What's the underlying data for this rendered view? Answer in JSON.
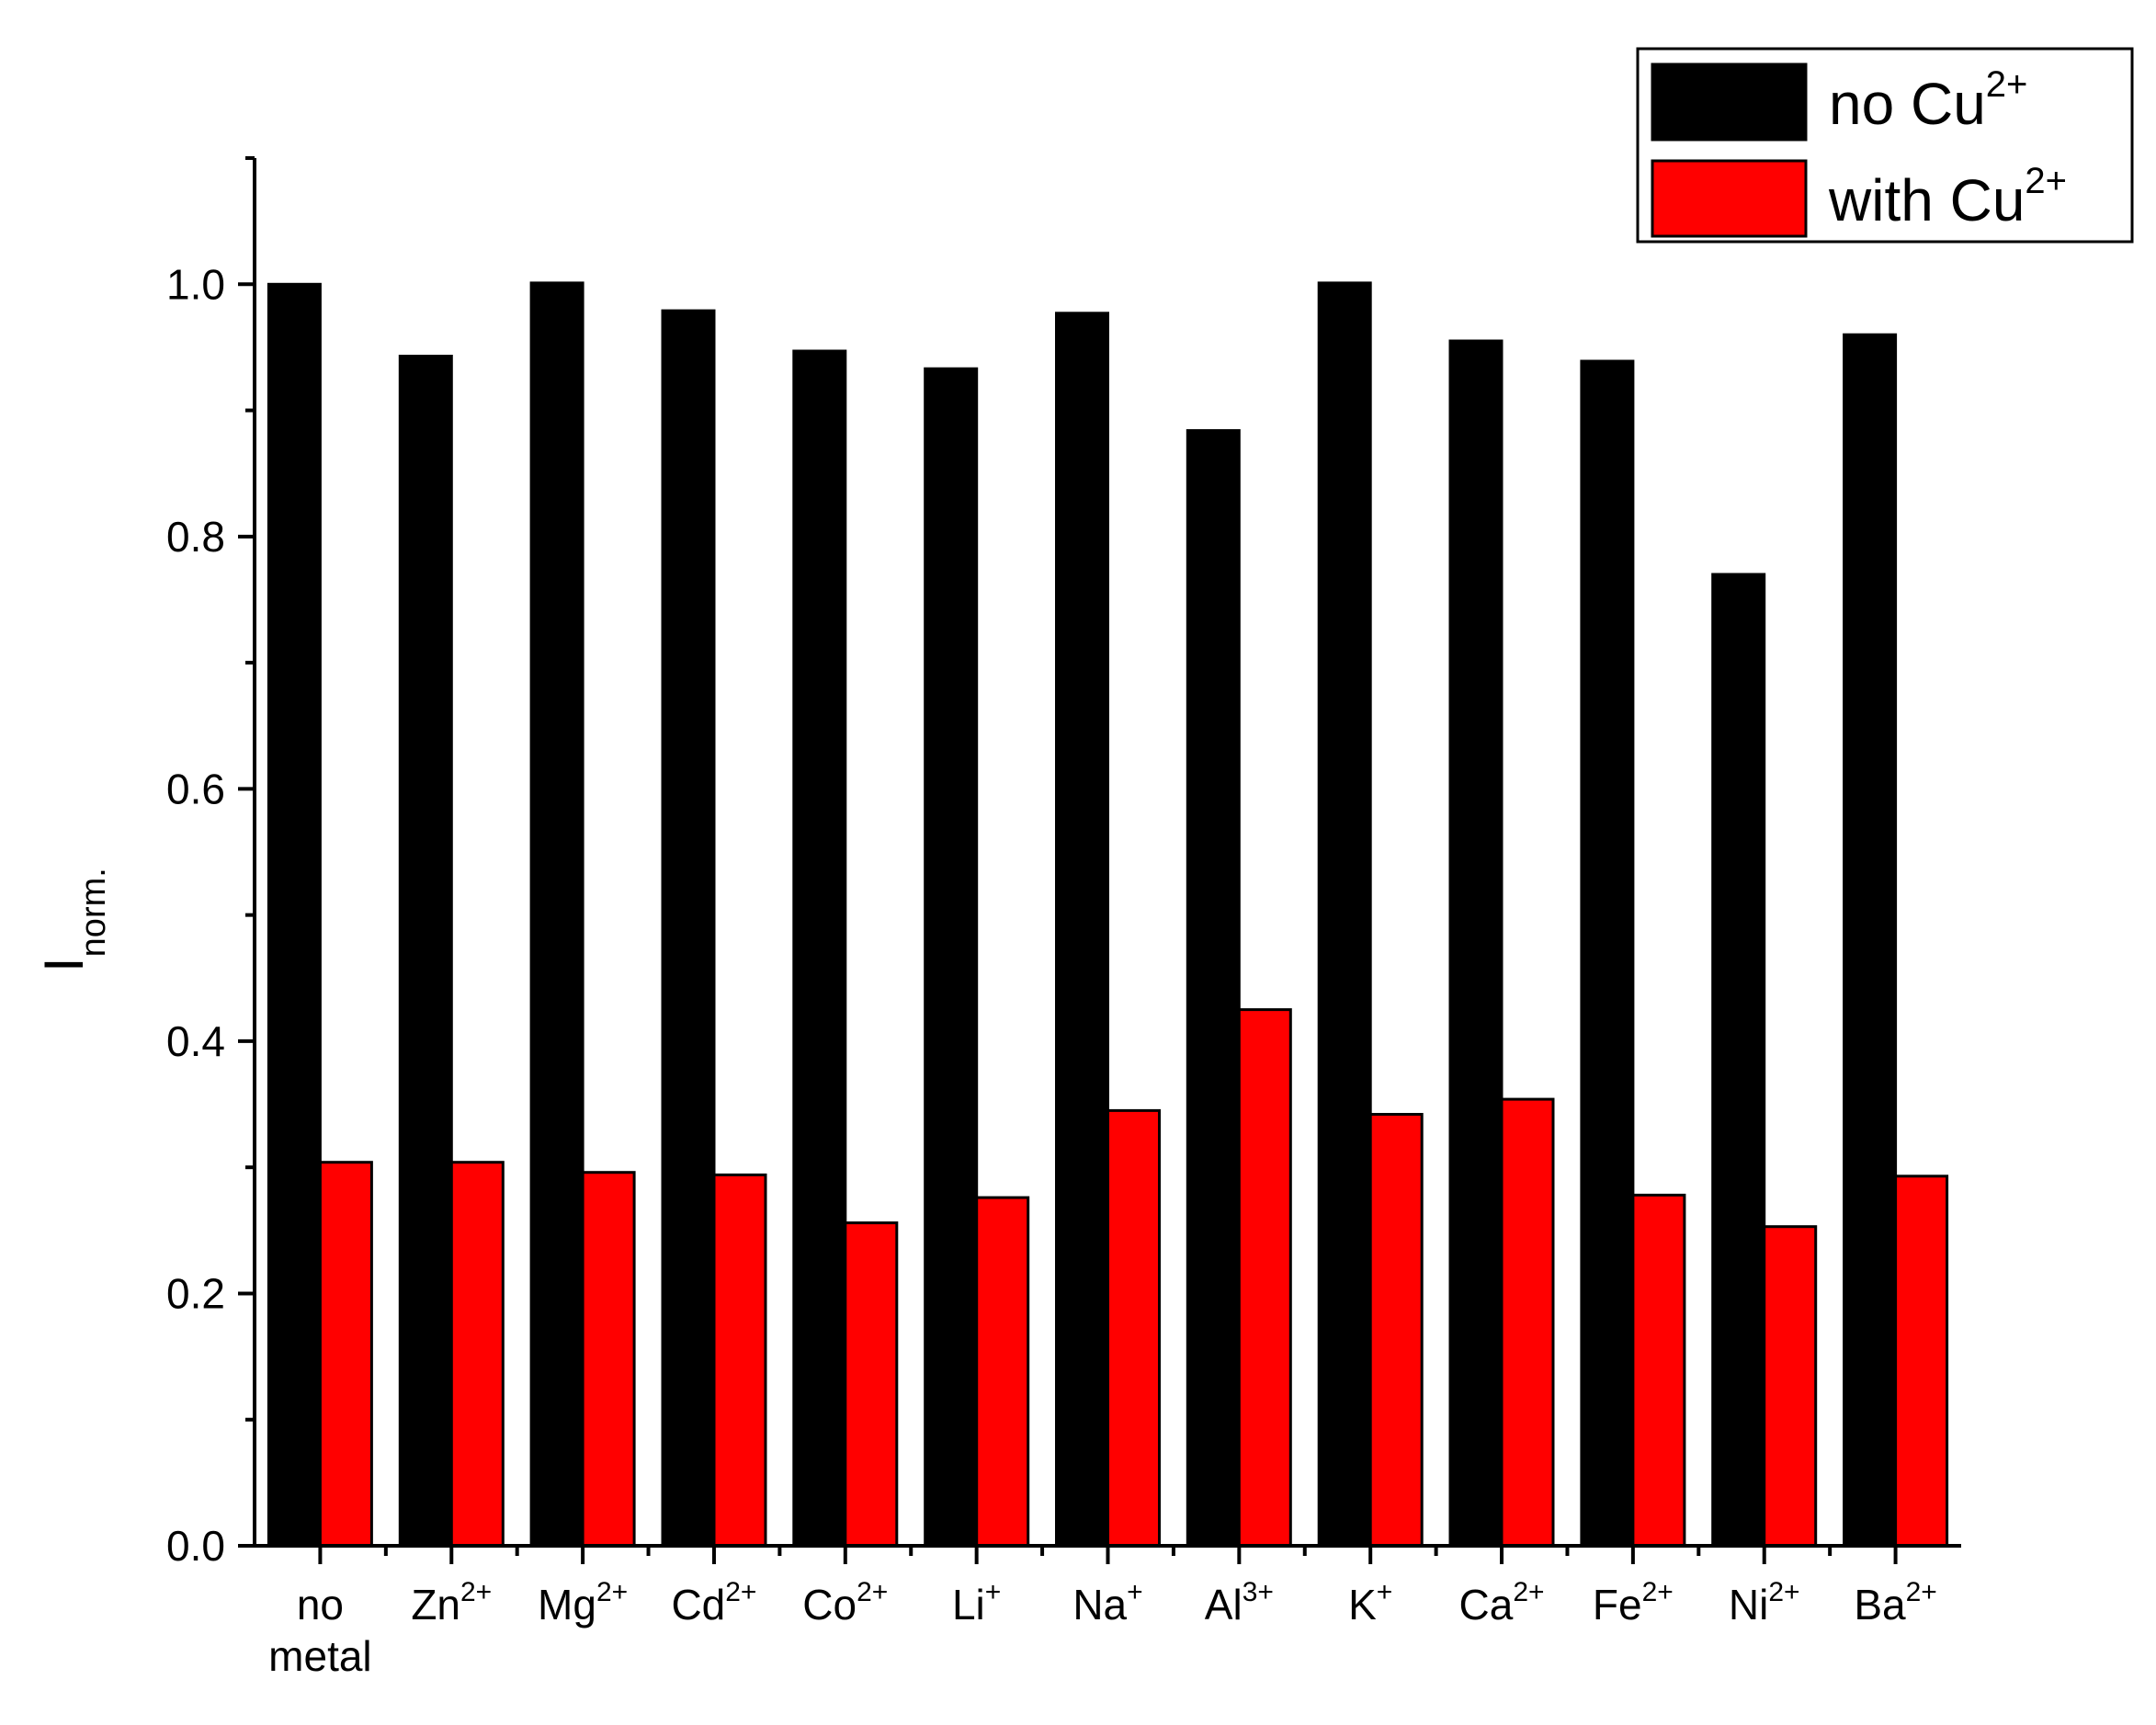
{
  "chart_data": {
    "type": "bar",
    "title": "",
    "ylabel": {
      "base": "I",
      "sub": "norm."
    },
    "xlabel": "",
    "ylim": [
      0,
      1.1
    ],
    "yticks": [
      "0.0",
      "0.2",
      "0.4",
      "0.6",
      "0.8",
      "1.0"
    ],
    "ytick_values": [
      0,
      0.2,
      0.4,
      0.6,
      0.8,
      1.0
    ],
    "grid": false,
    "legend_position": "top-right",
    "categories": [
      {
        "lines": [
          "no",
          "metal"
        ],
        "sup": ""
      },
      {
        "lines": [
          "Zn"
        ],
        "sup": "2+"
      },
      {
        "lines": [
          "Mg"
        ],
        "sup": "2+"
      },
      {
        "lines": [
          "Cd"
        ],
        "sup": "2+"
      },
      {
        "lines": [
          "Co"
        ],
        "sup": "2+"
      },
      {
        "lines": [
          "Li"
        ],
        "sup": "+"
      },
      {
        "lines": [
          "Na"
        ],
        "sup": "+"
      },
      {
        "lines": [
          "Al"
        ],
        "sup": "3+"
      },
      {
        "lines": [
          "K"
        ],
        "sup": "+"
      },
      {
        "lines": [
          "Ca"
        ],
        "sup": "2+"
      },
      {
        "lines": [
          "Fe"
        ],
        "sup": "2+"
      },
      {
        "lines": [
          "Ni"
        ],
        "sup": "2+"
      },
      {
        "lines": [
          "Ba"
        ],
        "sup": "2+"
      }
    ],
    "series": [
      {
        "name": {
          "base": "no Cu",
          "sup": "2+"
        },
        "color": "#000000",
        "values": [
          1.0,
          0.943,
          1.001,
          0.979,
          0.947,
          0.933,
          0.977,
          0.884,
          1.001,
          0.955,
          0.939,
          0.77,
          0.96
        ]
      },
      {
        "name": {
          "base": "with Cu",
          "sup": "2+"
        },
        "color": "#ff0000",
        "values": [
          0.304,
          0.304,
          0.296,
          0.294,
          0.256,
          0.276,
          0.345,
          0.425,
          0.342,
          0.354,
          0.278,
          0.253,
          0.293
        ]
      }
    ]
  }
}
